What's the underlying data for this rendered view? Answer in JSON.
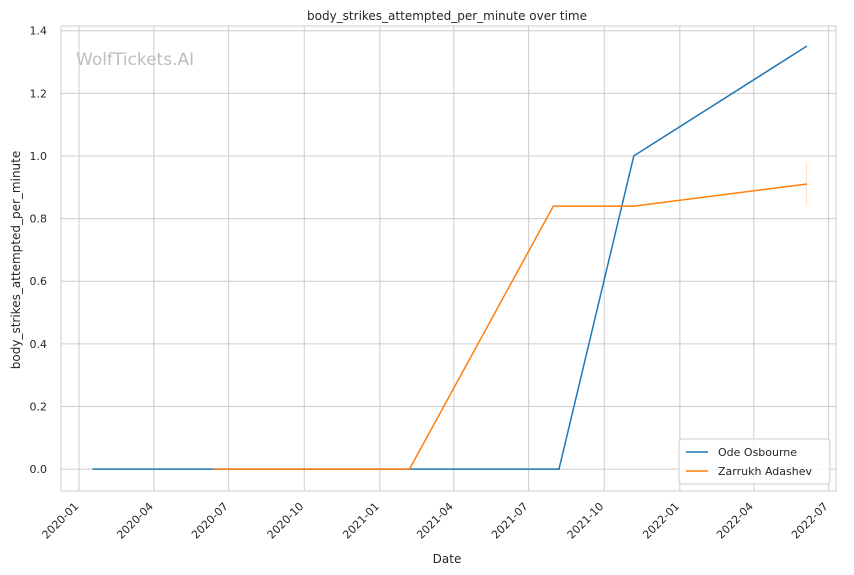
{
  "chart_data": {
    "type": "line",
    "title": "body_strikes_attempted_per_minute over time",
    "xlabel": "Date",
    "ylabel": "body_strikes_attempted_per_minute",
    "watermark": "WolfTickets.AI",
    "x_tick_labels": [
      "2020-01",
      "2020-04",
      "2020-07",
      "2020-10",
      "2021-01",
      "2021-04",
      "2021-07",
      "2021-10",
      "2022-01",
      "2022-04",
      "2022-07"
    ],
    "y_tick_labels": [
      "0.0",
      "0.2",
      "0.4",
      "0.6",
      "0.8",
      "1.0",
      "1.2",
      "1.4"
    ],
    "xlim": [
      "2019-12-10",
      "2022-07-10"
    ],
    "ylim": [
      -0.07,
      1.415
    ],
    "grid": true,
    "legend_position": "lower-right",
    "series": [
      {
        "name": "Ode Osbourne",
        "color": "#1f77b4",
        "points": [
          {
            "x": "2020-01-18",
            "y": 0.0
          },
          {
            "x": "2021-08-07",
            "y": 0.0
          },
          {
            "x": "2021-11-06",
            "y": 1.0
          },
          {
            "x": "2022-06-04",
            "y": 1.35
          }
        ]
      },
      {
        "name": "Zarrukh Adashev",
        "color": "#ff7f0e",
        "points": [
          {
            "x": "2020-06-13",
            "y": 0.0
          },
          {
            "x": "2021-02-06",
            "y": 0.0
          },
          {
            "x": "2021-07-31",
            "y": 0.84
          },
          {
            "x": "2021-11-06",
            "y": 0.84
          },
          {
            "x": "2022-06-04",
            "y": 0.91
          }
        ]
      }
    ]
  }
}
